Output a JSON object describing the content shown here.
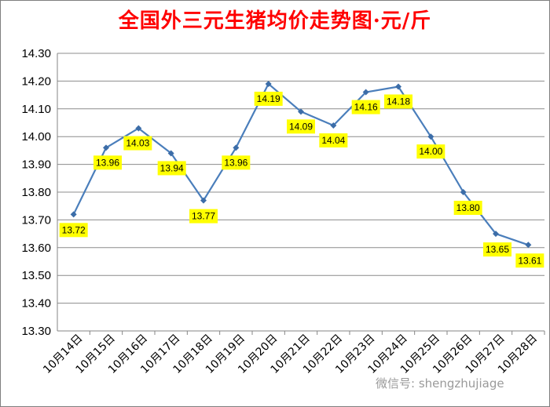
{
  "chart_data": {
    "type": "line",
    "title": "全国外三元生猪均价走势图·元/斤",
    "xlabel": "",
    "ylabel": "",
    "categories": [
      "10月14日",
      "10月15日",
      "10月16日",
      "10月17日",
      "10月18日",
      "10月19日",
      "10月20日",
      "10月21日",
      "10月22日",
      "10月23日",
      "10月24日",
      "10月25日",
      "10月26日",
      "10月27日",
      "10月28日"
    ],
    "series": [
      {
        "values": [
          13.72,
          13.96,
          14.03,
          13.94,
          13.77,
          13.96,
          14.19,
          14.09,
          14.04,
          14.16,
          14.18,
          14.0,
          13.8,
          13.65,
          13.61
        ]
      }
    ],
    "data_labels": [
      "13.72",
      "13.96",
      "14.03",
      "13.94",
      "13.77",
      "13.96",
      "14.19",
      "14.09",
      "14.04",
      "14.16",
      "14.18",
      "14.00",
      "13.80",
      "13.65",
      "13.61"
    ],
    "yticks": [
      "13.30",
      "13.40",
      "13.50",
      "13.60",
      "13.70",
      "13.80",
      "13.90",
      "14.00",
      "14.10",
      "14.20",
      "14.30"
    ],
    "ylim": [
      13.3,
      14.3
    ],
    "grid": true,
    "legend": "none",
    "colors": {
      "line": "#4a7ebb",
      "marker": "#3c6da8",
      "label_bg": "#ffff00",
      "title": "#ff0000",
      "grid": "#8c8c8c"
    }
  },
  "watermark": "微信号: shengzhujiage"
}
